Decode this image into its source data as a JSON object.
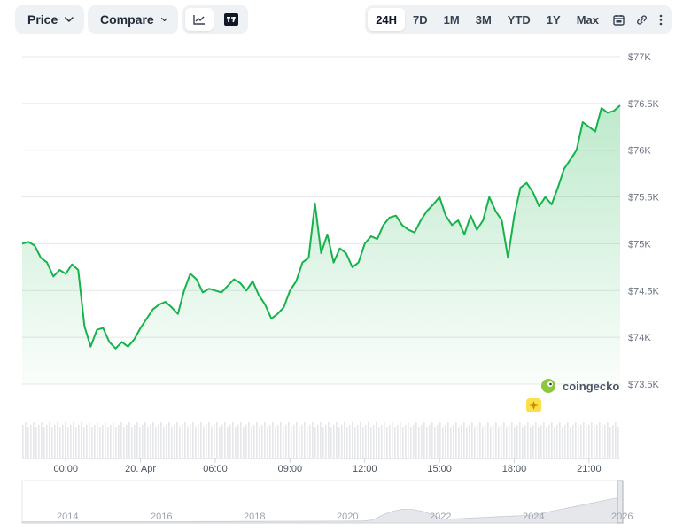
{
  "toolbar": {
    "price_label": "Price",
    "compare_label": "Compare",
    "ranges": [
      "24H",
      "7D",
      "1M",
      "3M",
      "YTD",
      "1Y",
      "Max"
    ],
    "active_range": "24H"
  },
  "brand": {
    "watermark": "coingecko"
  },
  "colors": {
    "line": "#16b34a",
    "fill": "#16b34a",
    "grid": "#e5e7eb",
    "axis_text": "#6b7280"
  },
  "chart_data": {
    "type": "area",
    "title": "",
    "xlabel": "",
    "ylabel": "",
    "ylim": [
      73500,
      77000
    ],
    "y_ticks": [
      "$77K",
      "$76.5K",
      "$76K",
      "$75.5K",
      "$75K",
      "$74.5K",
      "$74K",
      "$73.5K"
    ],
    "y_tick_values": [
      77000,
      76500,
      76000,
      75500,
      75000,
      74500,
      74000,
      73500
    ],
    "x_ticks": [
      "00:00",
      "20. Apr",
      "06:00",
      "09:00",
      "12:00",
      "15:00",
      "18:00",
      "21:00"
    ],
    "x_tick_values": [
      1.75,
      4.75,
      7.75,
      10.75,
      13.75,
      16.75,
      19.75,
      22.75
    ],
    "x_range_hours": [
      0,
      24
    ],
    "series": [
      {
        "x": [
          0,
          0.25,
          0.5,
          0.75,
          1,
          1.25,
          1.5,
          1.75,
          2,
          2.25,
          2.5,
          2.75,
          3,
          3.25,
          3.5,
          3.75,
          4,
          4.25,
          4.5,
          4.75,
          5,
          5.25,
          5.5,
          5.75,
          6,
          6.25,
          6.5,
          6.75,
          7,
          7.25,
          7.5,
          7.75,
          8,
          8.25,
          8.5,
          8.75,
          9,
          9.25,
          9.5,
          9.75,
          10,
          10.25,
          10.5,
          10.75,
          11,
          11.25,
          11.5,
          11.75,
          12,
          12.25,
          12.5,
          12.75,
          13,
          13.25,
          13.5,
          13.75,
          14,
          14.25,
          14.5,
          14.75,
          15,
          15.25,
          15.5,
          15.75,
          16,
          16.25,
          16.5,
          16.75,
          17,
          17.25,
          17.5,
          17.75,
          18,
          18.25,
          18.5,
          18.75,
          19,
          19.25,
          19.5,
          19.75,
          20,
          20.25,
          20.5,
          20.75,
          21,
          21.25,
          21.5,
          21.75,
          22,
          22.25,
          22.5,
          22.75,
          23,
          23.25,
          23.5,
          23.75,
          24
        ],
        "values": [
          75000,
          75020,
          74980,
          74850,
          74800,
          74650,
          74720,
          74680,
          74780,
          74720,
          74120,
          73900,
          74080,
          74100,
          73950,
          73880,
          73950,
          73900,
          73980,
          74100,
          74200,
          74300,
          74350,
          74380,
          74320,
          74250,
          74500,
          74680,
          74620,
          74480,
          74520,
          74500,
          74480,
          74550,
          74620,
          74580,
          74500,
          74600,
          74450,
          74350,
          74200,
          74250,
          74320,
          74500,
          74600,
          74800,
          74850,
          75430,
          74900,
          75100,
          74800,
          74950,
          74900,
          74750,
          74800,
          75000,
          75080,
          75050,
          75200,
          75280,
          75300,
          75200,
          75150,
          75120,
          75250,
          75350,
          75420,
          75500,
          75300,
          75200,
          75250,
          75100,
          75300,
          75150,
          75250,
          75500,
          75350,
          75250,
          74850,
          75300,
          75600,
          75650,
          75550,
          75400,
          75500,
          75420,
          75600,
          75800,
          75900,
          76000,
          76300,
          76250,
          76200,
          76450,
          76400,
          76420,
          76480
        ]
      }
    ],
    "navigator": {
      "x_ticks": [
        "2014",
        "2016",
        "2018",
        "2020",
        "2022",
        "2024",
        "2026"
      ]
    }
  }
}
